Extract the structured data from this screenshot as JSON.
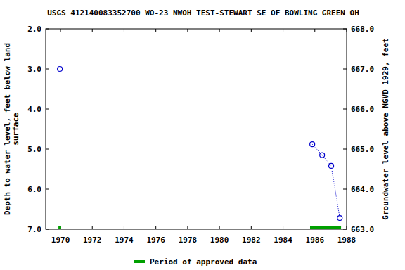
{
  "chart_data": {
    "type": "scatter",
    "title": "USGS 412140083352700 WO-23 NWOH TEST-STEWART SE OF BOWLING GREEN OH",
    "ylabel": "Depth to water level, feet below land surface",
    "y2label": "Groundwater level above NGVD 1929, feet",
    "xlim": [
      1969.07,
      1988
    ],
    "xticks": [
      1970,
      1972,
      1974,
      1976,
      1978,
      1980,
      1982,
      1984,
      1986,
      1988
    ],
    "ylim": [
      7,
      2
    ],
    "yticks": [
      {
        "value": 2,
        "label": "2.0"
      },
      {
        "value": 3,
        "label": "3.0"
      },
      {
        "value": 4,
        "label": "4.0"
      },
      {
        "value": 5,
        "label": "5.0"
      },
      {
        "value": 6,
        "label": "6.0"
      },
      {
        "value": 7,
        "label": "7.0"
      }
    ],
    "y2lim": [
      663,
      668
    ],
    "y2ticks": [
      {
        "value": 663,
        "label": "663.0"
      },
      {
        "value": 664,
        "label": "664.0"
      },
      {
        "value": 665,
        "label": "665.0"
      },
      {
        "value": 666,
        "label": "666.0"
      },
      {
        "value": 667,
        "label": "667.0"
      },
      {
        "value": 668,
        "label": "668.0"
      }
    ],
    "grid": false,
    "legend": "bottom",
    "series": [
      {
        "color": "#0000cc",
        "marker": "circle",
        "line_style": "dotted",
        "x": [
          1969.96,
          null,
          1985.84,
          1986.46,
          1987.03,
          1987.57
        ],
        "values": [
          3.0,
          null,
          4.88,
          5.15,
          5.42,
          6.72
        ]
      }
    ],
    "approved_periods": {
      "name": "Period of approved data",
      "color": "#00a000",
      "ranges": [
        [
          1969.87,
          1970.04
        ],
        [
          1985.7,
          1987.65
        ]
      ]
    }
  }
}
